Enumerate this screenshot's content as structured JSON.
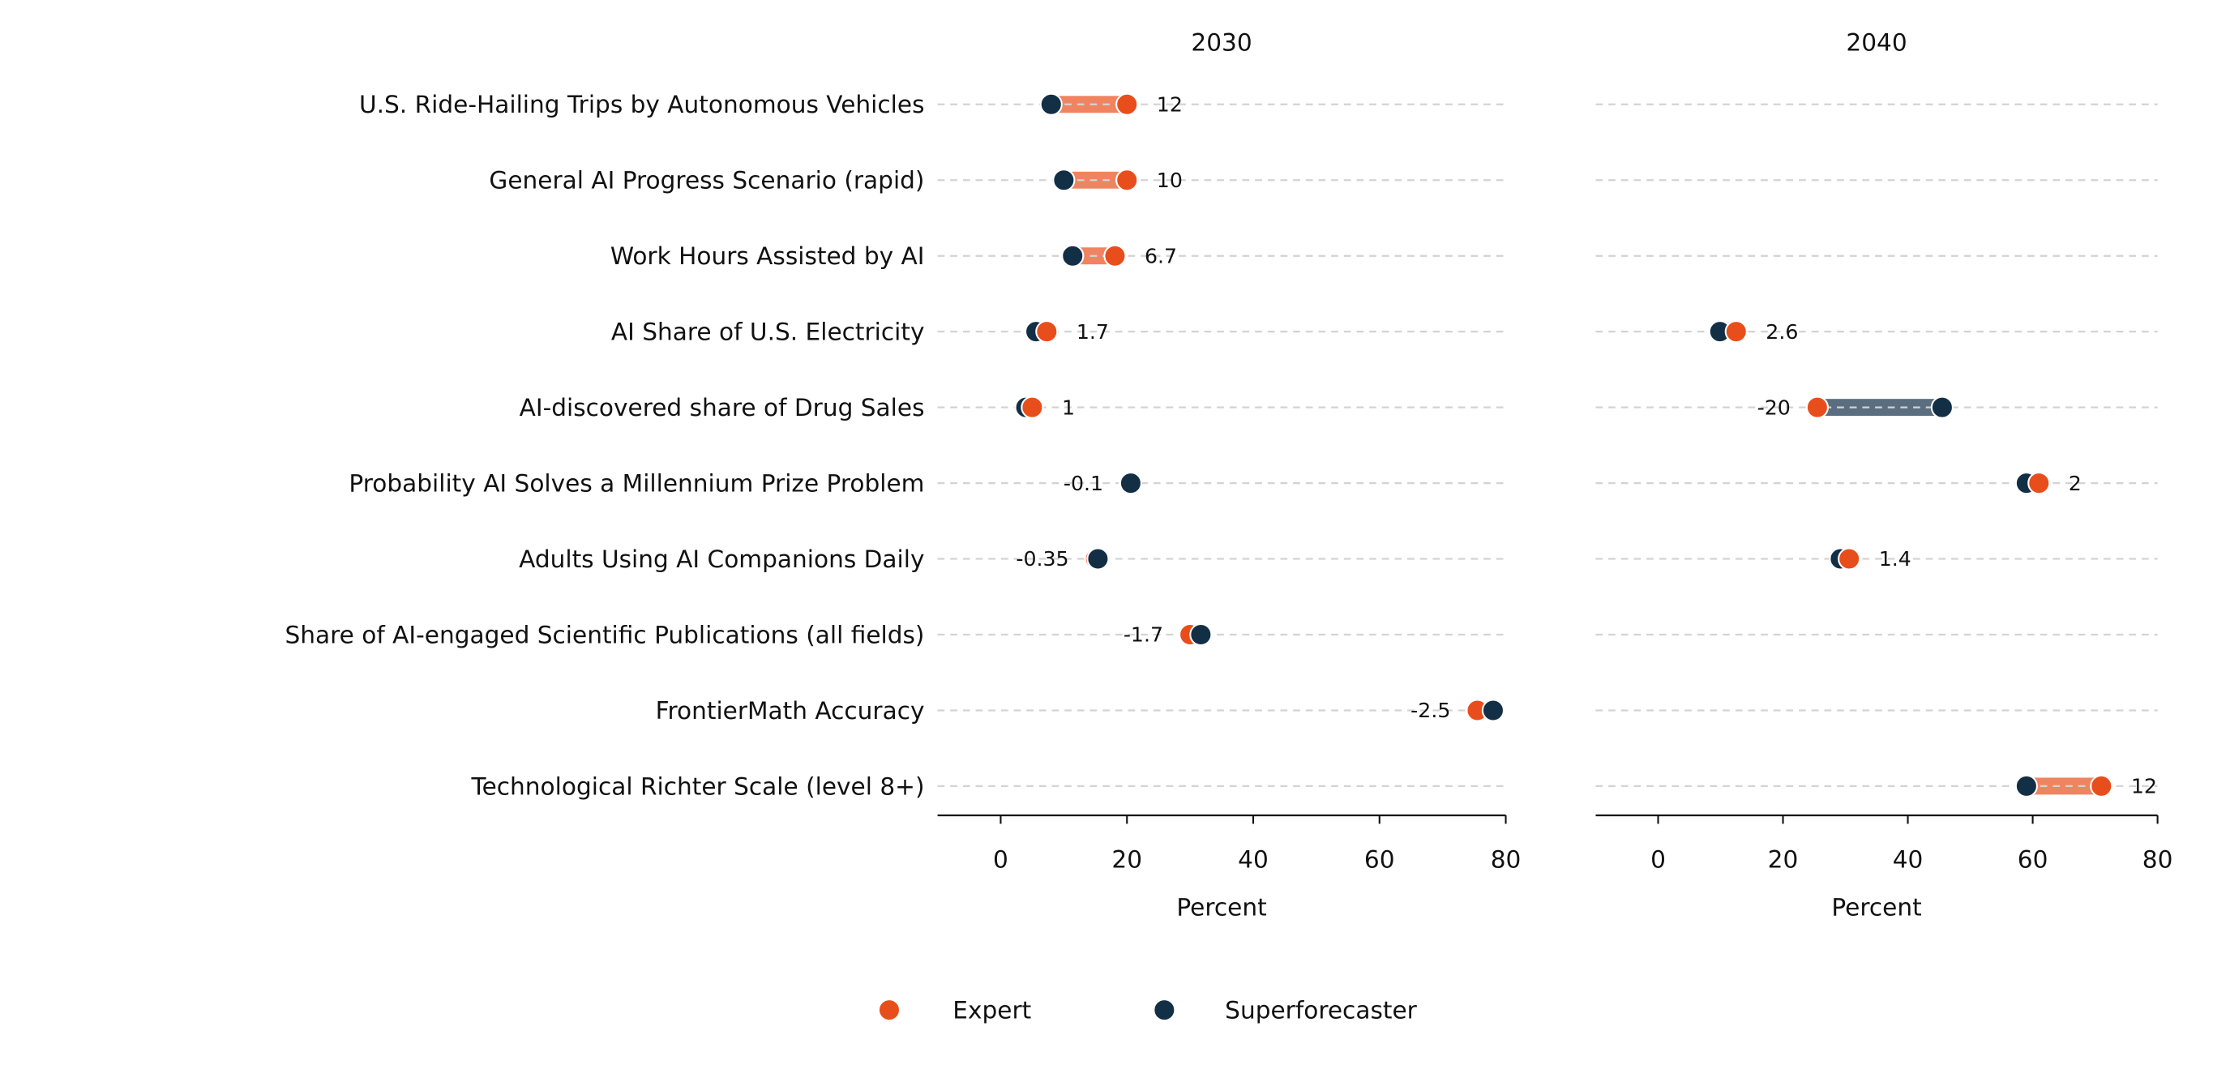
{
  "chart_data": {
    "type": "dumbbell",
    "colors": {
      "expert": "#E84E1B",
      "superforecaster": "#132F46",
      "positive_bar": "#F08460",
      "negative_bar": "#5A6E7F",
      "grid": "#D3D3D3"
    },
    "legend": {
      "placement": "bottom-center",
      "entries": [
        "Expert",
        "Superforecaster"
      ]
    },
    "categories": [
      "U.S. Ride-Hailing Trips by Autonomous Vehicles",
      "General AI Progress Scenario (rapid)",
      "Work Hours Assisted by AI",
      "AI Share of U.S. Electricity",
      "AI-discovered share of Drug Sales",
      "Probability AI Solves a Millennium Prize Problem",
      "Adults Using AI Companions Daily",
      "Share of AI-engaged Scientific Publications (all fields)",
      "FrontierMath Accuracy",
      "Technological Richter Scale (level 8+)"
    ],
    "panels": [
      {
        "title": "2030",
        "xlabel": "Percent",
        "xlim": [
          -10,
          80
        ],
        "xticks": [
          "0",
          "20",
          "40",
          "60",
          "80"
        ],
        "grid": "horizontal dashed",
        "points": [
          {
            "expert": 20,
            "superforecaster": 8,
            "diff_label": "12"
          },
          {
            "expert": 20,
            "superforecaster": 10,
            "diff_label": "10"
          },
          {
            "expert": 18.1,
            "superforecaster": 11.4,
            "diff_label": "6.7"
          },
          {
            "expert": 7.3,
            "superforecaster": 5.6,
            "diff_label": "1.7"
          },
          {
            "expert": 5,
            "superforecaster": 4,
            "diff_label": "1"
          },
          {
            "expert": 20.5,
            "superforecaster": 20.6,
            "diff_label": "-0.1"
          },
          {
            "expert": 15.05,
            "superforecaster": 15.4,
            "diff_label": "-0.35"
          },
          {
            "expert": 30,
            "superforecaster": 31.7,
            "diff_label": "-1.7"
          },
          {
            "expert": 75.5,
            "superforecaster": 78,
            "diff_label": "-2.5"
          },
          null
        ]
      },
      {
        "title": "2040",
        "xlabel": "Percent",
        "xlim": [
          -10,
          80
        ],
        "xticks": [
          "0",
          "20",
          "40",
          "60",
          "80"
        ],
        "grid": "horizontal dashed",
        "points": [
          null,
          null,
          null,
          {
            "expert": 12.5,
            "superforecaster": 9.9,
            "diff_label": "2.6"
          },
          {
            "expert": 25.5,
            "superforecaster": 45.5,
            "diff_label": "-20"
          },
          {
            "expert": 61,
            "superforecaster": 59,
            "diff_label": "2"
          },
          {
            "expert": 30.6,
            "superforecaster": 29.2,
            "diff_label": "1.4"
          },
          null,
          null,
          {
            "expert": 71,
            "superforecaster": 59,
            "diff_label": "12"
          }
        ]
      }
    ]
  }
}
